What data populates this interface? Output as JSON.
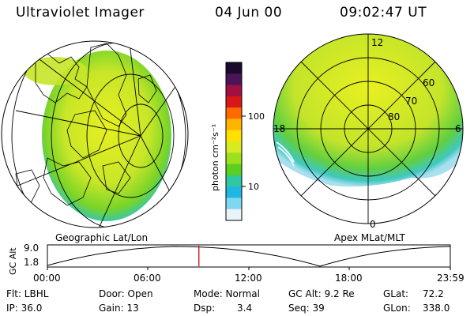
{
  "header": {
    "title": "Ultraviolet Imager",
    "date": "04 Jun 00",
    "time": "09:02:47 UT"
  },
  "left_map": {
    "caption": "Geographic Lat/Lon"
  },
  "colorbar": {
    "unit_label": "photon cm⁻²s⁻¹",
    "ticks": [
      "100",
      "10"
    ],
    "colors": [
      "#1a0a2e",
      "#4b1458",
      "#a01040",
      "#d81818",
      "#ff6a00",
      "#ffb400",
      "#ffe000",
      "#d8ea20",
      "#9ee020",
      "#5ad020",
      "#30c8a0",
      "#20b8e0",
      "#80d8f0",
      "#e8f4f8"
    ]
  },
  "right_map": {
    "caption": "Apex MLat/MLT",
    "mlt_labels": [
      "12",
      "18",
      "6",
      "0"
    ],
    "lat_labels": [
      "60",
      "70",
      "80"
    ]
  },
  "timeline": {
    "axis_label": "GC Alt",
    "y_ticks": [
      "9.0",
      "1.8"
    ],
    "x_ticks": [
      "00:00",
      "06:00",
      "12:00",
      "18:00",
      "23:59"
    ],
    "current_fraction": 0.376
  },
  "status": {
    "flt": "Flt: LBHL",
    "ip": "IP: 36.0",
    "door": "Door: Open",
    "gain": "Gain: 13",
    "mode": "Mode: Normal",
    "dsp_label": "Dsp:",
    "dsp_value": "3.4",
    "gc_alt": "GC Alt: 9.2 Re",
    "seq": "Seq: 39",
    "glat_label": "GLat:",
    "glat_value": "72.2",
    "glon_label": "GLon:",
    "glon_value": "338.0"
  }
}
